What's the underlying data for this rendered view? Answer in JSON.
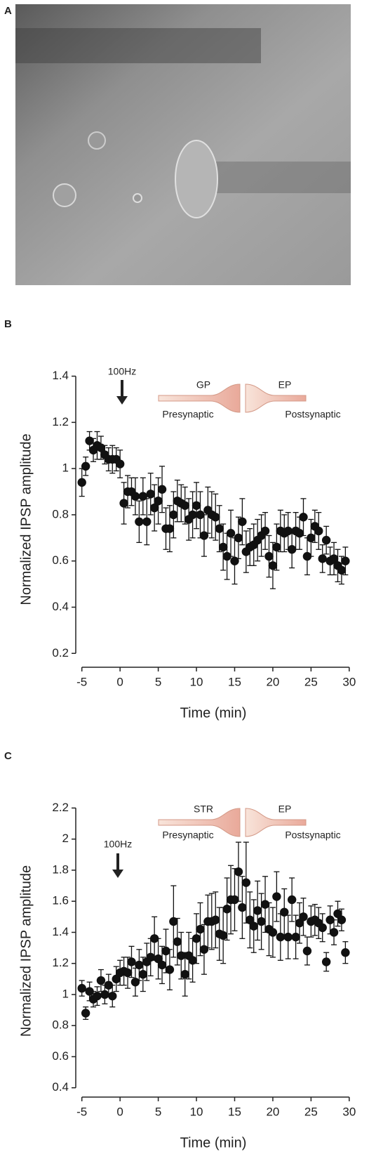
{
  "image_panel": {
    "label": "A"
  },
  "chart_data": [
    {
      "type": "scatter",
      "panel_label": "B",
      "annotation": "100Hz",
      "xlabel": "Time (min)",
      "ylabel": "Normalized IPSP amplitude",
      "inset": {
        "left": "GP",
        "right": "EP",
        "left_caption": "Presynaptic",
        "right_caption": "Postsynaptic"
      },
      "color": "#111111",
      "xlim": [
        -5.8,
        30.2
      ],
      "ylim": [
        0.14,
        1.42
      ],
      "xticks": [
        -5,
        0,
        5,
        10,
        15,
        20,
        25,
        30
      ],
      "yticks": [
        0.2,
        0.4,
        0.6,
        0.8,
        1.0,
        1.2,
        1.4
      ],
      "x": [
        -5,
        -4.5,
        -4,
        -3.5,
        -3,
        -2.5,
        -2,
        -1.5,
        -1,
        -0.5,
        0,
        0.5,
        1,
        1.5,
        2,
        2.5,
        3,
        3.5,
        4,
        4.5,
        5,
        5.5,
        6,
        6.5,
        7,
        7.5,
        8,
        8.5,
        9,
        9.5,
        10,
        10.5,
        11,
        11.5,
        12,
        12.5,
        13,
        13.5,
        14,
        14.5,
        15,
        15.5,
        16,
        16.5,
        17,
        17.5,
        18,
        18.5,
        19,
        19.5,
        20,
        20.5,
        21,
        21.5,
        22,
        22.5,
        23,
        23.5,
        24,
        24.5,
        25,
        25.5,
        26,
        26.5,
        27,
        27.5,
        28,
        28.5,
        29,
        29.5
      ],
      "values": [
        0.94,
        1.01,
        1.12,
        1.08,
        1.1,
        1.09,
        1.06,
        1.04,
        1.04,
        1.04,
        1.02,
        0.85,
        0.9,
        0.9,
        0.88,
        0.77,
        0.88,
        0.77,
        0.89,
        0.83,
        0.86,
        0.91,
        0.74,
        0.74,
        0.8,
        0.86,
        0.85,
        0.84,
        0.78,
        0.8,
        0.84,
        0.8,
        0.71,
        0.82,
        0.8,
        0.79,
        0.74,
        0.66,
        0.62,
        0.72,
        0.6,
        0.7,
        0.77,
        0.64,
        0.66,
        0.67,
        0.69,
        0.71,
        0.73,
        0.62,
        0.58,
        0.66,
        0.73,
        0.72,
        0.73,
        0.65,
        0.73,
        0.72,
        0.79,
        0.62,
        0.7,
        0.75,
        0.73,
        0.61,
        0.69,
        0.6,
        0.61,
        0.58,
        0.56,
        0.6
      ],
      "errors": [
        0.06,
        0.04,
        0.04,
        0.05,
        0.06,
        0.05,
        0.04,
        0.05,
        0.06,
        0.05,
        0.06,
        0.09,
        0.07,
        0.06,
        0.08,
        0.09,
        0.08,
        0.1,
        0.09,
        0.1,
        0.1,
        0.1,
        0.09,
        0.1,
        0.1,
        0.09,
        0.08,
        0.08,
        0.09,
        0.1,
        0.1,
        0.1,
        0.09,
        0.1,
        0.1,
        0.1,
        0.1,
        0.1,
        0.1,
        0.1,
        0.1,
        0.09,
        0.1,
        0.09,
        0.08,
        0.09,
        0.09,
        0.09,
        0.08,
        0.09,
        0.1,
        0.1,
        0.09,
        0.08,
        0.08,
        0.08,
        0.08,
        0.07,
        0.08,
        0.08,
        0.08,
        0.07,
        0.08,
        0.06,
        0.06,
        0.06,
        0.07,
        0.07,
        0.06,
        0.06
      ]
    },
    {
      "type": "scatter",
      "panel_label": "C",
      "annotation": "100Hz",
      "xlabel": "Time (min)",
      "ylabel": "Normalized IPSP amplitude",
      "inset": {
        "left": "STR",
        "right": "EP",
        "left_caption": "Presynaptic",
        "right_caption": "Postsynaptic"
      },
      "color": "#111111",
      "xlim": [
        -5.8,
        30.2
      ],
      "ylim": [
        0.34,
        2.22
      ],
      "xticks": [
        -5,
        0,
        5,
        10,
        15,
        20,
        25,
        30
      ],
      "yticks": [
        0.4,
        0.6,
        0.8,
        1.0,
        1.2,
        1.4,
        1.6,
        1.8,
        2.0,
        2.2
      ],
      "x": [
        -5,
        -4.5,
        -4,
        -3.5,
        -3,
        -2.5,
        -2,
        -1.5,
        -1,
        -0.5,
        0,
        0.5,
        1,
        1.5,
        2,
        2.5,
        3,
        3.5,
        4,
        4.5,
        5,
        5.5,
        6,
        6.5,
        7,
        7.5,
        8,
        8.5,
        9,
        9.5,
        10,
        10.5,
        11,
        11.5,
        12,
        12.5,
        13,
        13.5,
        14,
        14.5,
        15,
        15.5,
        16,
        16.5,
        17,
        17.5,
        18,
        18.5,
        19,
        19.5,
        20,
        20.5,
        21,
        21.5,
        22,
        22.5,
        23,
        23.5,
        24,
        24.5,
        25,
        25.5,
        26,
        26.5,
        27,
        27.5,
        28,
        28.5,
        29,
        29.5
      ],
      "values": [
        1.04,
        0.88,
        1.02,
        0.97,
        0.99,
        1.09,
        1.0,
        1.06,
        0.99,
        1.1,
        1.14,
        1.15,
        1.14,
        1.21,
        1.08,
        1.19,
        1.13,
        1.21,
        1.24,
        1.36,
        1.23,
        1.19,
        1.28,
        1.16,
        1.47,
        1.34,
        1.25,
        1.13,
        1.25,
        1.22,
        1.36,
        1.42,
        1.29,
        1.47,
        1.47,
        1.48,
        1.39,
        1.38,
        1.55,
        1.61,
        1.61,
        1.79,
        1.56,
        1.72,
        1.48,
        1.44,
        1.54,
        1.47,
        1.58,
        1.42,
        1.4,
        1.63,
        1.37,
        1.53,
        1.37,
        1.61,
        1.37,
        1.46,
        1.5,
        1.28,
        1.47,
        1.48,
        1.46,
        1.43,
        1.21,
        1.48,
        1.4,
        1.52,
        1.48,
        1.27
      ],
      "errors": [
        0.05,
        0.04,
        0.06,
        0.05,
        0.06,
        0.07,
        0.06,
        0.07,
        0.07,
        0.08,
        0.08,
        0.09,
        0.1,
        0.1,
        0.09,
        0.1,
        0.11,
        0.12,
        0.12,
        0.14,
        0.13,
        0.12,
        0.14,
        0.13,
        0.23,
        0.15,
        0.15,
        0.14,
        0.15,
        0.14,
        0.16,
        0.17,
        0.16,
        0.17,
        0.18,
        0.18,
        0.17,
        0.18,
        0.2,
        0.22,
        0.2,
        0.19,
        0.2,
        0.26,
        0.18,
        0.17,
        0.19,
        0.18,
        0.18,
        0.17,
        0.16,
        0.16,
        0.15,
        0.15,
        0.14,
        0.14,
        0.14,
        0.13,
        0.12,
        0.09,
        0.1,
        0.1,
        0.1,
        0.09,
        0.06,
        0.09,
        0.08,
        0.08,
        0.07,
        0.07
      ]
    }
  ]
}
